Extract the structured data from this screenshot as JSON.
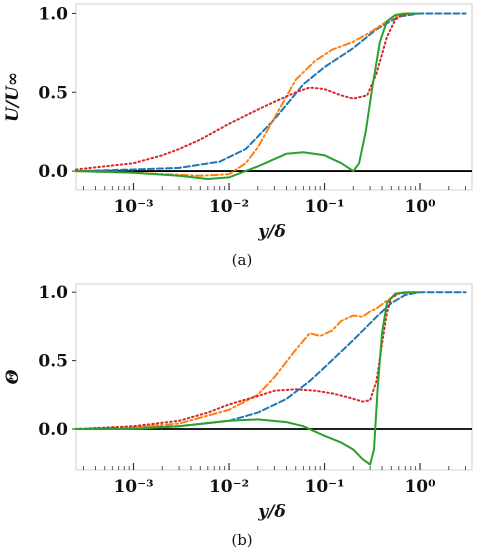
{
  "chart_data": [
    {
      "type": "line",
      "caption": "(a)",
      "xlabel": "y/δ",
      "ylabel": "U/U∞",
      "xscale": "log",
      "xlim": [
        0.00025,
        3.5
      ],
      "ylim": [
        -0.12,
        1.06
      ],
      "xticks": [
        {
          "value": 0.001,
          "label": "10⁻³"
        },
        {
          "value": 0.01,
          "label": "10⁻²"
        },
        {
          "value": 0.1,
          "label": "10⁻¹"
        },
        {
          "value": 1,
          "label": "10⁰"
        }
      ],
      "yticks": [
        {
          "value": 0,
          "label": "0.0"
        },
        {
          "value": 0.5,
          "label": "0.5"
        },
        {
          "value": 1,
          "label": "1.0"
        }
      ],
      "hline": 0,
      "series": [
        {
          "style": "dashed",
          "color": "#1f77b4",
          "x": [
            0.00025,
            0.001,
            0.003,
            0.008,
            0.015,
            0.03,
            0.06,
            0.1,
            0.2,
            0.35,
            0.6,
            1.0,
            1.5,
            3.0
          ],
          "y": [
            0.0,
            0.01,
            0.02,
            0.06,
            0.14,
            0.33,
            0.55,
            0.66,
            0.78,
            0.9,
            0.98,
            1.0,
            1.0,
            1.0
          ]
        },
        {
          "style": "dashdot",
          "color": "#ff7f0e",
          "x": [
            0.00025,
            0.001,
            0.005,
            0.01,
            0.015,
            0.02,
            0.03,
            0.05,
            0.08,
            0.12,
            0.2,
            0.3,
            0.45,
            0.6,
            0.8,
            0.95
          ],
          "y": [
            0.0,
            -0.01,
            -0.03,
            -0.02,
            0.05,
            0.15,
            0.34,
            0.58,
            0.7,
            0.77,
            0.82,
            0.88,
            0.95,
            0.99,
            1.0,
            1.0
          ]
        },
        {
          "style": "dotted",
          "color": "#d62728",
          "x": [
            0.00025,
            0.001,
            0.002,
            0.003,
            0.005,
            0.01,
            0.02,
            0.03,
            0.05,
            0.07,
            0.1,
            0.15,
            0.2,
            0.28,
            0.35,
            0.45,
            0.55,
            0.65,
            0.8
          ],
          "y": [
            0.01,
            0.05,
            0.1,
            0.14,
            0.2,
            0.3,
            0.39,
            0.44,
            0.5,
            0.53,
            0.52,
            0.48,
            0.46,
            0.48,
            0.62,
            0.85,
            0.96,
            0.99,
            1.0
          ]
        },
        {
          "style": "solid",
          "color": "#2ca02c",
          "x": [
            0.00025,
            0.001,
            0.003,
            0.006,
            0.01,
            0.02,
            0.04,
            0.06,
            0.1,
            0.15,
            0.2,
            0.23,
            0.27,
            0.32,
            0.38,
            0.45,
            0.55,
            0.7,
            0.85,
            0.95
          ],
          "y": [
            0.0,
            -0.01,
            -0.03,
            -0.05,
            -0.04,
            0.03,
            0.11,
            0.12,
            0.1,
            0.05,
            0.0,
            0.05,
            0.25,
            0.55,
            0.82,
            0.95,
            0.99,
            1.0,
            1.0,
            1.0
          ]
        }
      ]
    },
    {
      "type": "line",
      "caption": "(b)",
      "xlabel": "y/δ",
      "ylabel": "Θ",
      "xscale": "log",
      "xlim": [
        0.00025,
        3.5
      ],
      "ylim": [
        -0.3,
        1.06
      ],
      "xticks": [
        {
          "value": 0.001,
          "label": "10⁻³"
        },
        {
          "value": 0.01,
          "label": "10⁻²"
        },
        {
          "value": 0.1,
          "label": "10⁻¹"
        },
        {
          "value": 1,
          "label": "10⁰"
        }
      ],
      "yticks": [
        {
          "value": 0,
          "label": "0.0"
        },
        {
          "value": 0.5,
          "label": "0.5"
        },
        {
          "value": 1,
          "label": "1.0"
        }
      ],
      "hline": 0,
      "series": [
        {
          "style": "dashed",
          "color": "#1f77b4",
          "x": [
            0.00025,
            0.001,
            0.003,
            0.01,
            0.02,
            0.04,
            0.07,
            0.1,
            0.2,
            0.35,
            0.5,
            0.7,
            1.0,
            1.5,
            3.0
          ],
          "y": [
            0.0,
            0.01,
            0.02,
            0.06,
            0.12,
            0.22,
            0.35,
            0.45,
            0.65,
            0.82,
            0.92,
            0.98,
            1.0,
            1.0,
            1.0
          ]
        },
        {
          "style": "dashdot",
          "color": "#ff7f0e",
          "x": [
            0.00025,
            0.001,
            0.003,
            0.01,
            0.02,
            0.03,
            0.05,
            0.07,
            0.09,
            0.12,
            0.15,
            0.2,
            0.25,
            0.3,
            0.35,
            0.45,
            0.6,
            0.8,
            0.95
          ],
          "y": [
            0.0,
            0.01,
            0.04,
            0.14,
            0.25,
            0.38,
            0.58,
            0.7,
            0.68,
            0.72,
            0.79,
            0.83,
            0.82,
            0.86,
            0.88,
            0.94,
            0.99,
            1.0,
            1.0
          ]
        },
        {
          "style": "dotted",
          "color": "#d62728",
          "x": [
            0.00025,
            0.001,
            0.003,
            0.006,
            0.01,
            0.02,
            0.03,
            0.05,
            0.08,
            0.12,
            0.18,
            0.25,
            0.3,
            0.35,
            0.4,
            0.45,
            0.5,
            0.6,
            0.8
          ],
          "y": [
            0.0,
            0.02,
            0.06,
            0.12,
            0.18,
            0.24,
            0.28,
            0.29,
            0.28,
            0.26,
            0.23,
            0.2,
            0.21,
            0.35,
            0.62,
            0.85,
            0.96,
            0.99,
            1.0
          ]
        },
        {
          "style": "solid",
          "color": "#2ca02c",
          "x": [
            0.00025,
            0.001,
            0.003,
            0.01,
            0.02,
            0.04,
            0.06,
            0.08,
            0.1,
            0.15,
            0.2,
            0.25,
            0.3,
            0.33,
            0.36,
            0.4,
            0.45,
            0.55,
            0.7,
            0.95
          ],
          "y": [
            0.0,
            0.0,
            0.02,
            0.06,
            0.07,
            0.05,
            0.02,
            -0.02,
            -0.05,
            -0.1,
            -0.15,
            -0.22,
            -0.26,
            -0.15,
            0.3,
            0.7,
            0.92,
            0.99,
            1.0,
            1.0
          ]
        }
      ]
    }
  ]
}
